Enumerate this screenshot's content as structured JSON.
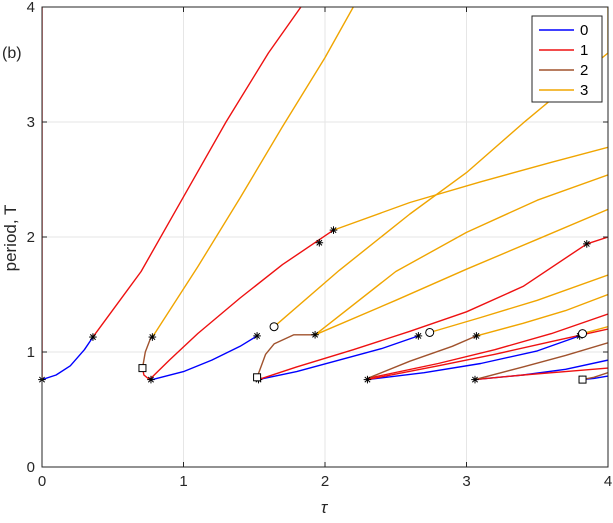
{
  "chart_data": {
    "type": "line",
    "panel_label": "(b)",
    "xlabel": "τ",
    "ylabel": "period, T",
    "xlim": [
      0,
      4
    ],
    "ylim": [
      0,
      4
    ],
    "xticks": [
      "0",
      "1",
      "2",
      "3",
      "4"
    ],
    "yticks": [
      "0",
      "1",
      "2",
      "3",
      "4"
    ],
    "grid": true,
    "legend": {
      "position": "top-right"
    },
    "colors": {
      "0": "#0000ff",
      "1": "#ee1111",
      "2": "#a0522d",
      "3": "#f0a500"
    },
    "series": [
      {
        "name": "0",
        "color": "#0000ff",
        "segments": [
          [
            [
              0,
              0.76
            ],
            [
              0.1,
              0.8
            ],
            [
              0.2,
              0.88
            ],
            [
              0.3,
              1.02
            ],
            [
              0.36,
              1.13
            ]
          ],
          [
            [
              0.78,
              0.76
            ],
            [
              1.0,
              0.83
            ],
            [
              1.2,
              0.93
            ],
            [
              1.4,
              1.05
            ],
            [
              1.52,
              1.14
            ]
          ],
          [
            [
              1.53,
              0.76
            ],
            [
              1.8,
              0.83
            ],
            [
              2.1,
              0.93
            ],
            [
              2.4,
              1.03
            ],
            [
              2.66,
              1.14
            ]
          ],
          [
            [
              2.3,
              0.76
            ],
            [
              2.7,
              0.82
            ],
            [
              3.1,
              0.9
            ],
            [
              3.5,
              1.01
            ],
            [
              3.8,
              1.14
            ]
          ],
          [
            [
              3.06,
              0.76
            ],
            [
              3.4,
              0.8
            ],
            [
              3.7,
              0.85
            ],
            [
              4.0,
              0.93
            ]
          ],
          [
            [
              3.82,
              0.76
            ],
            [
              3.9,
              0.77
            ],
            [
              4.0,
              0.79
            ]
          ]
        ]
      },
      {
        "name": "1",
        "color": "#ee1111",
        "segments": [
          [
            [
              0,
              0.76
            ],
            [
              0,
              4
            ]
          ],
          [
            [
              0.36,
              1.13
            ],
            [
              0.7,
              1.7
            ],
            [
              1.0,
              2.35
            ],
            [
              1.3,
              3.0
            ],
            [
              1.6,
              3.6
            ],
            [
              1.83,
              4.0
            ]
          ],
          [
            [
              0.71,
              0.86
            ],
            [
              0.72,
              0.8
            ],
            [
              0.76,
              0.76
            ],
            [
              0.9,
              0.93
            ],
            [
              1.1,
              1.16
            ],
            [
              1.4,
              1.47
            ],
            [
              1.7,
              1.76
            ],
            [
              2.06,
              2.06
            ]
          ],
          [
            [
              1.53,
              0.76
            ],
            [
              1.8,
              0.87
            ],
            [
              2.2,
              1.02
            ],
            [
              2.6,
              1.18
            ],
            [
              3.0,
              1.35
            ],
            [
              3.4,
              1.57
            ],
            [
              3.85,
              1.94
            ],
            [
              4.0,
              2.0
            ]
          ],
          [
            [
              2.3,
              0.76
            ],
            [
              2.8,
              0.88
            ],
            [
              3.2,
              0.98
            ],
            [
              3.6,
              1.09
            ],
            [
              4.0,
              1.2
            ]
          ],
          [
            [
              2.3,
              0.77
            ],
            [
              2.8,
              0.9
            ],
            [
              3.2,
              1.02
            ],
            [
              3.6,
              1.16
            ],
            [
              4.0,
              1.33
            ]
          ],
          [
            [
              3.06,
              0.76
            ],
            [
              3.4,
              0.8
            ],
            [
              3.7,
              0.83
            ],
            [
              4.0,
              0.86
            ]
          ]
        ]
      },
      {
        "name": "2",
        "color": "#a0522d",
        "segments": [
          [
            [
              0.71,
              0.86
            ],
            [
              0.73,
              1.0
            ],
            [
              0.77,
              1.13
            ]
          ],
          [
            [
              1.52,
              0.78
            ],
            [
              1.58,
              0.98
            ],
            [
              1.64,
              1.07
            ],
            [
              1.78,
              1.15
            ],
            [
              1.93,
              1.15
            ]
          ],
          [
            [
              2.3,
              0.77
            ],
            [
              2.6,
              0.92
            ],
            [
              2.9,
              1.05
            ],
            [
              3.07,
              1.14
            ]
          ],
          [
            [
              3.06,
              0.76
            ],
            [
              3.4,
              0.87
            ],
            [
              3.7,
              0.97
            ],
            [
              4.0,
              1.08
            ]
          ],
          [
            [
              3.82,
              0.76
            ],
            [
              3.9,
              0.78
            ],
            [
              4.0,
              0.82
            ]
          ]
        ]
      },
      {
        "name": "3",
        "color": "#f0a500",
        "segments": [
          [
            [
              0.78,
              1.13
            ],
            [
              1.1,
              1.74
            ],
            [
              1.4,
              2.34
            ],
            [
              1.7,
              2.96
            ],
            [
              2.0,
              3.56
            ],
            [
              2.2,
              4.0
            ]
          ],
          [
            [
              1.64,
              1.22
            ],
            [
              2.1,
              1.71
            ],
            [
              2.6,
              2.2
            ],
            [
              3.0,
              2.56
            ],
            [
              3.4,
              2.99
            ],
            [
              3.8,
              3.4
            ],
            [
              4.0,
              3.6
            ],
            [
              4.0,
              4.0
            ]
          ],
          [
            [
              1.93,
              1.15
            ],
            [
              2.5,
              1.45
            ],
            [
              3.0,
              1.72
            ],
            [
              3.5,
              1.98
            ],
            [
              4.0,
              2.24
            ]
          ],
          [
            [
              2.06,
              2.06
            ],
            [
              2.6,
              2.3
            ],
            [
              3.1,
              2.48
            ],
            [
              3.6,
              2.65
            ],
            [
              4.0,
              2.78
            ]
          ],
          [
            [
              1.93,
              1.15
            ],
            [
              2.5,
              1.7
            ],
            [
              3.0,
              2.04
            ],
            [
              3.5,
              2.32
            ],
            [
              4.0,
              2.54
            ]
          ],
          [
            [
              2.74,
              1.17
            ],
            [
              3.1,
              1.3
            ],
            [
              3.5,
              1.45
            ],
            [
              4.0,
              1.67
            ]
          ],
          [
            [
              3.07,
              1.14
            ],
            [
              3.4,
              1.25
            ],
            [
              3.7,
              1.36
            ],
            [
              4.0,
              1.5
            ]
          ],
          [
            [
              3.82,
              1.16
            ],
            [
              4.0,
              1.22
            ]
          ]
        ]
      }
    ],
    "markers": {
      "stars": [
        [
          0,
          0.76
        ],
        [
          0.36,
          1.13
        ],
        [
          0.78,
          1.13
        ],
        [
          0.77,
          0.76
        ],
        [
          1.52,
          1.14
        ],
        [
          1.53,
          0.76
        ],
        [
          1.93,
          1.15
        ],
        [
          1.96,
          1.95
        ],
        [
          2.06,
          2.06
        ],
        [
          2.3,
          0.76
        ],
        [
          2.66,
          1.14
        ],
        [
          3.07,
          1.14
        ],
        [
          3.06,
          0.76
        ],
        [
          3.8,
          1.14
        ],
        [
          3.85,
          1.94
        ],
        [
          3.82,
          0.76
        ]
      ],
      "circles": [
        [
          1.64,
          1.22
        ],
        [
          2.74,
          1.17
        ],
        [
          3.82,
          1.16
        ]
      ],
      "squares": [
        [
          0.71,
          0.86
        ],
        [
          1.52,
          0.78
        ],
        [
          3.82,
          0.76
        ]
      ]
    }
  }
}
